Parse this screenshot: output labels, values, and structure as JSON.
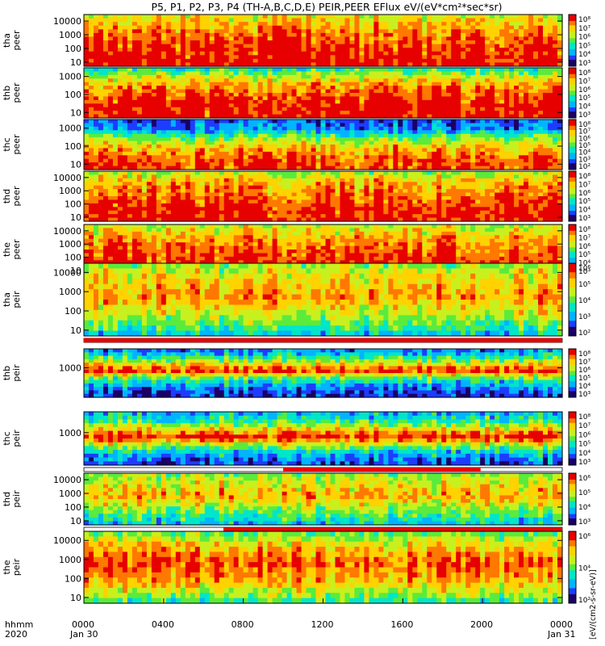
{
  "title": "P5, P1, P2, P3, P4 (TH-A,B,C,D,E) PEIR,PEER EFlux eV/(eV*cm²*sec*sr)",
  "footer": {
    "row1_label": "hhmm",
    "row2_label": "2020",
    "date_start": "Jan 30",
    "date_end": "Jan 31"
  },
  "colorbar_unit_label": "[eV/(cm2-s-sr-eV)]",
  "chart_data": {
    "type": "heatmap",
    "x_ticks": [
      "0000",
      "0400",
      "0800",
      "1200",
      "1600",
      "2000",
      "0000"
    ],
    "x_range_hours": [
      0,
      24
    ],
    "panels": [
      {
        "id": "tha-peer",
        "ylabel": [
          "tha",
          "peer"
        ],
        "yticks": [
          "10000",
          "1000",
          "100",
          "10"
        ],
        "ylim": [
          5,
          30000
        ],
        "yscale": "log",
        "colorbar_ticks": [
          "10⁸",
          "10⁷",
          "10⁶",
          "10⁵",
          "10⁴",
          "10³"
        ],
        "flag_bar": "none"
      },
      {
        "id": "thb-peer",
        "ylabel": [
          "thb",
          "peer"
        ],
        "yticks": [
          "1000",
          "100",
          "10"
        ],
        "ylim": [
          5,
          3000
        ],
        "yscale": "log",
        "colorbar_ticks": [
          "10⁸",
          "10⁷",
          "10⁶",
          "10⁵",
          "10⁴",
          "10³"
        ],
        "flag_bar": "none"
      },
      {
        "id": "thc-peer",
        "ylabel": [
          "thc",
          "peer"
        ],
        "yticks": [
          "1000",
          "100",
          "10"
        ],
        "ylim": [
          5,
          3000
        ],
        "yscale": "log",
        "colorbar_ticks": [
          "10⁸",
          "10⁷",
          "10⁶",
          "10⁵",
          "10⁴",
          "10³",
          "10²"
        ],
        "flag_bar": "none"
      },
      {
        "id": "thd-peer",
        "ylabel": [
          "thd",
          "peer"
        ],
        "yticks": [
          "10000",
          "1000",
          "100",
          "10"
        ],
        "ylim": [
          5,
          30000
        ],
        "yscale": "log",
        "colorbar_ticks": [
          "10⁸",
          "10⁷",
          "10⁶",
          "10⁵",
          "10⁴",
          "10³"
        ],
        "flag_bar": "none"
      },
      {
        "id": "the-peer",
        "ylabel": [
          "the",
          "peer"
        ],
        "yticks": [
          "10000",
          "1000",
          "100",
          "10"
        ],
        "ylim": [
          5,
          30000
        ],
        "yscale": "log",
        "colorbar_ticks": [
          "10⁸",
          "10⁷",
          "10⁶",
          "10⁵",
          "10⁴",
          "10³"
        ],
        "flag_bar": "partial",
        "flag_segments": [
          [
            7.8,
            22.6
          ]
        ]
      },
      {
        "id": "tha-peir",
        "ylabel": [
          "tha",
          "peir"
        ],
        "yticks": [
          "10000",
          "1000",
          "100",
          "10"
        ],
        "ylim": [
          5,
          30000
        ],
        "yscale": "log",
        "colorbar_ticks": [
          "10⁶",
          "10⁵",
          "10⁴",
          "10³",
          "10²"
        ],
        "flag_bar": "full",
        "flag_segments": [
          [
            0,
            24
          ]
        ]
      },
      {
        "id": "thb-peir",
        "ylabel": [
          "thb",
          "peir"
        ],
        "yticks": [
          "1000"
        ],
        "ylim": [
          5,
          30000
        ],
        "yscale": "log",
        "colorbar_ticks": [
          "10⁸",
          "10⁷",
          "10⁶",
          "10⁵",
          "10⁴",
          "10³"
        ],
        "flag_bar": "none"
      },
      {
        "id": "thc-peir",
        "ylabel": [
          "thc",
          "peir"
        ],
        "yticks": [
          "1000"
        ],
        "ylim": [
          5,
          30000
        ],
        "yscale": "log",
        "colorbar_ticks": [
          "10⁸",
          "10⁷",
          "10⁶",
          "10⁵",
          "10⁴",
          "10³"
        ],
        "flag_bar": "partial",
        "flag_segments": [
          [
            10.0,
            19.9
          ]
        ]
      },
      {
        "id": "thd-peir",
        "ylabel": [
          "thd",
          "peir"
        ],
        "yticks": [
          "10000",
          "1000",
          "100",
          "10"
        ],
        "ylim": [
          5,
          30000
        ],
        "yscale": "log",
        "colorbar_ticks": [
          "10⁶",
          "10⁵",
          "10⁴",
          "10³"
        ],
        "flag_bar": "partial",
        "flag_segments": [
          [
            7.0,
            24
          ]
        ]
      },
      {
        "id": "the-peir",
        "ylabel": [
          "the",
          "peir"
        ],
        "yticks": [
          "10000",
          "1000",
          "100",
          "10"
        ],
        "ylim": [
          5,
          30000
        ],
        "yscale": "log",
        "colorbar_ticks": [
          "10⁶",
          "10⁴",
          "10²"
        ],
        "flag_bar": "none"
      }
    ],
    "colormap": [
      "#1a0066",
      "#1e3cff",
      "#00b4ff",
      "#00e6c8",
      "#5aeb3c",
      "#c8f01e",
      "#ffd200",
      "#ff7800",
      "#e60000"
    ],
    "flag_color": "#e60000"
  }
}
